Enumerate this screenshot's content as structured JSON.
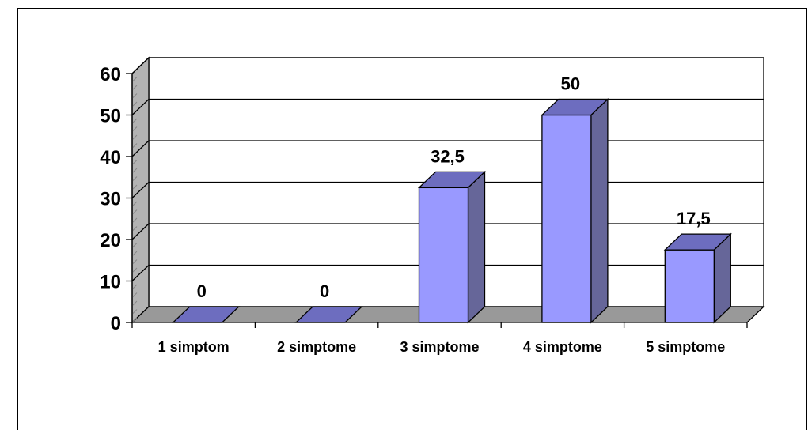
{
  "chart_data": {
    "type": "bar",
    "title": "",
    "xlabel": "",
    "ylabel": "",
    "categories": [
      "1 simptom",
      "2 simptome",
      "3 simptome",
      "4 simptome",
      "5 simptome"
    ],
    "values": [
      0,
      0,
      32.5,
      50,
      17.5
    ],
    "data_labels": [
      "0",
      "0",
      "32,5",
      "50",
      "17,5"
    ],
    "ylim": [
      0,
      60
    ],
    "yticks": [
      0,
      10,
      20,
      30,
      40,
      50,
      60
    ],
    "grid": true,
    "legend": "none",
    "three_d": true,
    "colors": {
      "bar_front": "#9999ff",
      "bar_side": "#666699",
      "bar_top": "#6d6dbf",
      "floor": "#999999",
      "left_wall": "#b3b3b3",
      "back_wall": "#ffffff"
    }
  }
}
